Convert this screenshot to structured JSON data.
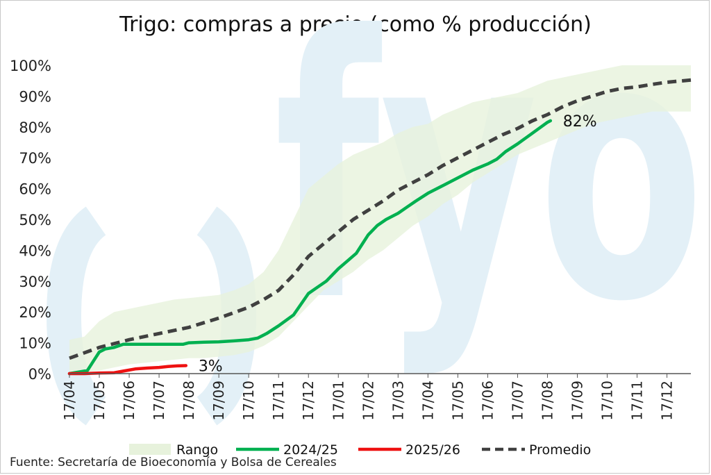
{
  "chart_data": {
    "type": "line",
    "title": "Trigo: compras a precio (como % producción)",
    "source": "Fuente: Secretaría de Bioeconomía y Bolsa de Cereales",
    "watermark": "fyo",
    "ylim": [
      0,
      100
    ],
    "y_ticks": [
      "0%",
      "10%",
      "20%",
      "30%",
      "40%",
      "50%",
      "60%",
      "70%",
      "80%",
      "90%",
      "100%"
    ],
    "x_ticks": [
      "17/04",
      "17/05",
      "17/06",
      "17/07",
      "17/08",
      "17/09",
      "17/10",
      "17/11",
      "17/12",
      "17/01",
      "17/02",
      "17/03",
      "17/04",
      "17/05",
      "17/06",
      "17/07",
      "17/08",
      "17/09",
      "17/10",
      "17/11",
      "17/12"
    ],
    "xlim_months": [
      0,
      20.8
    ],
    "legend": [
      "Rango",
      "2024/25",
      "2025/26",
      "Promedio"
    ],
    "colors": {
      "rango": "#e7f2dc",
      "s2024": "#00b050",
      "s2025": "#ee1111",
      "promedio": "#404040",
      "watermark": "#e3f0f7"
    },
    "range_upper": [
      [
        0,
        11
      ],
      [
        0.5,
        12
      ],
      [
        1,
        17
      ],
      [
        1.5,
        20
      ],
      [
        2,
        21
      ],
      [
        2.5,
        22
      ],
      [
        3,
        23
      ],
      [
        3.5,
        24
      ],
      [
        4,
        24.5
      ],
      [
        4.5,
        25
      ],
      [
        5,
        25.5
      ],
      [
        5.5,
        27
      ],
      [
        6,
        29
      ],
      [
        6.5,
        33
      ],
      [
        7,
        40
      ],
      [
        7.5,
        50
      ],
      [
        8,
        60
      ],
      [
        8.5,
        64
      ],
      [
        9,
        68
      ],
      [
        9.5,
        71
      ],
      [
        10,
        73
      ],
      [
        10.5,
        75
      ],
      [
        11,
        78
      ],
      [
        11.5,
        80
      ],
      [
        12,
        81
      ],
      [
        12.5,
        84
      ],
      [
        13,
        86
      ],
      [
        13.5,
        88
      ],
      [
        14,
        89
      ],
      [
        14.5,
        90
      ],
      [
        15,
        91
      ],
      [
        15.5,
        93
      ],
      [
        16,
        95
      ],
      [
        16.5,
        96
      ],
      [
        17,
        97
      ],
      [
        17.5,
        98
      ],
      [
        18,
        99
      ],
      [
        18.5,
        100
      ],
      [
        19,
        100
      ],
      [
        19.5,
        100
      ],
      [
        20,
        100
      ],
      [
        20.8,
        100
      ]
    ],
    "range_lower": [
      [
        0,
        0
      ],
      [
        0.5,
        0.5
      ],
      [
        1,
        1
      ],
      [
        1.5,
        2
      ],
      [
        2,
        3
      ],
      [
        2.5,
        3.5
      ],
      [
        3,
        4
      ],
      [
        3.5,
        4.5
      ],
      [
        4,
        5
      ],
      [
        4.5,
        5
      ],
      [
        5,
        5.5
      ],
      [
        5.5,
        6
      ],
      [
        6,
        7
      ],
      [
        6.5,
        9
      ],
      [
        7,
        12
      ],
      [
        7.5,
        17
      ],
      [
        8,
        22
      ],
      [
        8.5,
        27
      ],
      [
        9,
        30
      ],
      [
        9.5,
        33
      ],
      [
        10,
        37
      ],
      [
        10.5,
        40
      ],
      [
        11,
        44
      ],
      [
        11.5,
        48
      ],
      [
        12,
        51
      ],
      [
        12.5,
        55
      ],
      [
        13,
        58
      ],
      [
        13.5,
        62
      ],
      [
        14,
        65
      ],
      [
        14.5,
        68
      ],
      [
        15,
        71
      ],
      [
        15.5,
        73
      ],
      [
        16,
        75
      ],
      [
        16.5,
        77
      ],
      [
        17,
        79
      ],
      [
        17.5,
        81
      ],
      [
        18,
        82
      ],
      [
        18.5,
        83
      ],
      [
        19,
        84
      ],
      [
        19.5,
        85
      ],
      [
        20,
        85
      ],
      [
        20.8,
        85
      ]
    ],
    "series": [
      {
        "name": "2024/25",
        "end_label": "82%",
        "points": [
          [
            0,
            0
          ],
          [
            0.6,
            1
          ],
          [
            0.8,
            4
          ],
          [
            1,
            7
          ],
          [
            1.2,
            8
          ],
          [
            1.5,
            8.5
          ],
          [
            1.8,
            9.5
          ],
          [
            2.5,
            9.5
          ],
          [
            3,
            9.5
          ],
          [
            3.5,
            9.5
          ],
          [
            3.8,
            9.5
          ],
          [
            4,
            10
          ],
          [
            4.5,
            10.2
          ],
          [
            5,
            10.3
          ],
          [
            5.5,
            10.6
          ],
          [
            6,
            11
          ],
          [
            6.3,
            11.5
          ],
          [
            6.6,
            13
          ],
          [
            7,
            15.5
          ],
          [
            7.5,
            19
          ],
          [
            8,
            26
          ],
          [
            8.3,
            28
          ],
          [
            8.6,
            30
          ],
          [
            9,
            34
          ],
          [
            9.3,
            36.5
          ],
          [
            9.6,
            39
          ],
          [
            9.8,
            42
          ],
          [
            10,
            45
          ],
          [
            10.3,
            48
          ],
          [
            10.6,
            50
          ],
          [
            11,
            52
          ],
          [
            11.3,
            54
          ],
          [
            11.6,
            56
          ],
          [
            12,
            58.5
          ],
          [
            12.5,
            61
          ],
          [
            13,
            63.5
          ],
          [
            13.5,
            66
          ],
          [
            14,
            68
          ],
          [
            14.3,
            69.5
          ],
          [
            14.6,
            72
          ],
          [
            15,
            74.5
          ],
          [
            15.5,
            78
          ],
          [
            16,
            81.5
          ],
          [
            16.1,
            82
          ]
        ]
      },
      {
        "name": "2025/26",
        "end_label": "3%",
        "points": [
          [
            0,
            0
          ],
          [
            0.5,
            0
          ],
          [
            1,
            0.2
          ],
          [
            1.5,
            0.3
          ],
          [
            1.8,
            0.8
          ],
          [
            2.2,
            1.5
          ],
          [
            2.6,
            1.8
          ],
          [
            3,
            2
          ],
          [
            3.3,
            2.3
          ],
          [
            3.6,
            2.5
          ],
          [
            3.9,
            2.6
          ]
        ]
      },
      {
        "name": "Promedio",
        "points": [
          [
            0,
            5
          ],
          [
            1,
            8.5
          ],
          [
            2,
            11
          ],
          [
            3,
            13
          ],
          [
            4,
            15
          ],
          [
            5,
            18
          ],
          [
            6,
            21.5
          ],
          [
            6.5,
            24
          ],
          [
            7,
            27
          ],
          [
            7.5,
            32
          ],
          [
            8,
            38
          ],
          [
            8.5,
            42
          ],
          [
            9,
            46
          ],
          [
            9.5,
            50
          ],
          [
            10,
            53
          ],
          [
            10.5,
            56
          ],
          [
            11,
            59.5
          ],
          [
            11.5,
            62
          ],
          [
            12,
            64.5
          ],
          [
            12.5,
            67.5
          ],
          [
            13,
            70
          ],
          [
            13.5,
            72.5
          ],
          [
            14,
            75
          ],
          [
            14.5,
            77.5
          ],
          [
            15,
            79.5
          ],
          [
            15.5,
            82
          ],
          [
            16,
            84
          ],
          [
            16.5,
            86.5
          ],
          [
            17,
            88.5
          ],
          [
            17.5,
            90
          ],
          [
            18,
            91.5
          ],
          [
            18.5,
            92.5
          ],
          [
            19,
            93
          ],
          [
            19.5,
            93.8
          ],
          [
            20,
            94.5
          ],
          [
            20.8,
            95.2
          ]
        ]
      }
    ]
  }
}
